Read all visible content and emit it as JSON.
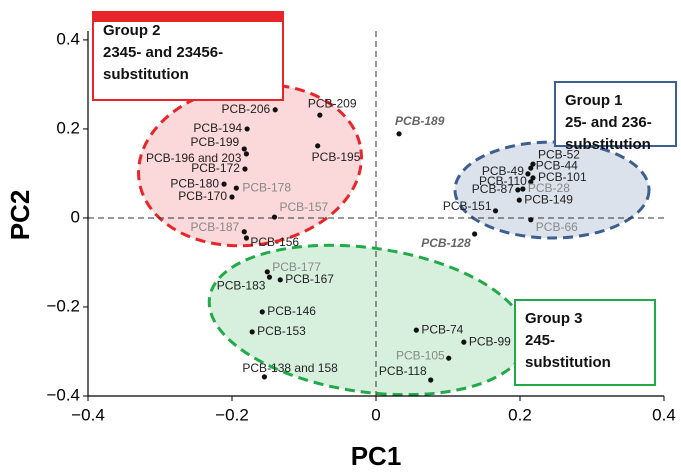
{
  "chart_data": {
    "type": "scatter",
    "x_label": "PC1",
    "y_label": "PC2",
    "xlim": [
      -0.4,
      0.4
    ],
    "ylim": [
      -0.4,
      0.42
    ],
    "xticks": [
      {
        "value": -0.4,
        "label": "−0.4"
      },
      {
        "value": -0.2,
        "label": "−0.2"
      },
      0,
      0.2,
      0.4
    ],
    "yticks": [
      {
        "value": -0.4,
        "label": "−0.4"
      },
      {
        "value": -0.2,
        "label": "−0.2"
      },
      0,
      0.2,
      0.4
    ],
    "points": [
      {
        "label": "PCB-206",
        "x": -0.14,
        "y": 0.243,
        "color": "#222"
      },
      {
        "label": "PCB-209",
        "x": -0.078,
        "y": 0.231,
        "color": "#222"
      },
      {
        "label": "PCB-194",
        "x": -0.179,
        "y": 0.2,
        "color": "#222"
      },
      {
        "label": "PCB-199",
        "x": -0.183,
        "y": 0.155,
        "color": "#222"
      },
      {
        "label": "PCB-196 and 203",
        "x": -0.18,
        "y": 0.144,
        "color": "#222"
      },
      {
        "label": "PCB-195",
        "x": -0.081,
        "y": 0.162,
        "color": "#222"
      },
      {
        "label": "PCB-172",
        "x": -0.182,
        "y": 0.11,
        "color": "#222"
      },
      {
        "label": "PCB-180",
        "x": -0.211,
        "y": 0.076,
        "color": "#222"
      },
      {
        "label": "PCB-178",
        "x": -0.194,
        "y": 0.067,
        "color": "#888"
      },
      {
        "label": "PCB-170",
        "x": -0.2,
        "y": 0.047,
        "color": "#222"
      },
      {
        "label": "PCB-157",
        "x": -0.141,
        "y": 0.002,
        "color": "#888"
      },
      {
        "label": "PCB-187",
        "x": -0.183,
        "y": -0.031,
        "color": "#888"
      },
      {
        "label": "PCB-156",
        "x": -0.18,
        "y": -0.045,
        "color": "#222"
      },
      {
        "label": "PCB-189",
        "x": 0.032,
        "y": 0.189,
        "color": "#666",
        "style": "italic"
      },
      {
        "label": "PCB-52",
        "x": 0.218,
        "y": 0.121,
        "color": "#222"
      },
      {
        "label": "PCB-44",
        "x": 0.215,
        "y": 0.112,
        "color": "#222"
      },
      {
        "label": "PCB-49",
        "x": 0.211,
        "y": 0.099,
        "color": "#222"
      },
      {
        "label": "PCB-101",
        "x": 0.218,
        "y": 0.09,
        "color": "#222"
      },
      {
        "label": "PCB-110",
        "x": 0.215,
        "y": 0.081,
        "color": "#222"
      },
      {
        "label": "PCB-87",
        "x": 0.197,
        "y": 0.063,
        "color": "#222"
      },
      {
        "label": "PCB-28",
        "x": 0.204,
        "y": 0.065,
        "color": "#888"
      },
      {
        "label": "PCB-149",
        "x": 0.199,
        "y": 0.04,
        "color": "#222"
      },
      {
        "label": "PCB-151",
        "x": 0.166,
        "y": 0.016,
        "color": "#222"
      },
      {
        "label": "PCB-66",
        "x": 0.215,
        "y": -0.004,
        "color": "#888"
      },
      {
        "label": "PCB-128",
        "x": 0.137,
        "y": -0.036,
        "color": "#666",
        "style": "italic"
      },
      {
        "label": "PCB-177",
        "x": -0.151,
        "y": -0.121,
        "color": "#888"
      },
      {
        "label": "PCB-183",
        "x": -0.148,
        "y": -0.133,
        "color": "#222"
      },
      {
        "label": "PCB-167",
        "x": -0.133,
        "y": -0.139,
        "color": "#222"
      },
      {
        "label": "PCB-146",
        "x": -0.158,
        "y": -0.211,
        "color": "#222"
      },
      {
        "label": "PCB-153",
        "x": -0.172,
        "y": -0.256,
        "color": "#222"
      },
      {
        "label": "PCB-138 and 158",
        "x": -0.155,
        "y": -0.357,
        "color": "#222"
      },
      {
        "label": "PCB-74",
        "x": 0.056,
        "y": -0.252,
        "color": "#222"
      },
      {
        "label": "PCB-99",
        "x": 0.122,
        "y": -0.279,
        "color": "#222"
      },
      {
        "label": "PCB-105",
        "x": 0.101,
        "y": -0.315,
        "color": "#888"
      },
      {
        "label": "PCB-118",
        "x": 0.076,
        "y": -0.364,
        "color": "#222"
      }
    ],
    "groups": [
      {
        "lines": [
          "Group 2",
          "2345- and 23456-",
          "substitution"
        ],
        "color": "#e8262a"
      },
      {
        "lines": [
          "Group 1",
          "25- and 236-",
          "substitution"
        ],
        "color": "#3d5f8f"
      },
      {
        "lines": [
          "Group 3",
          "245-",
          "substitution"
        ],
        "color": "#22aa48"
      }
    ]
  }
}
